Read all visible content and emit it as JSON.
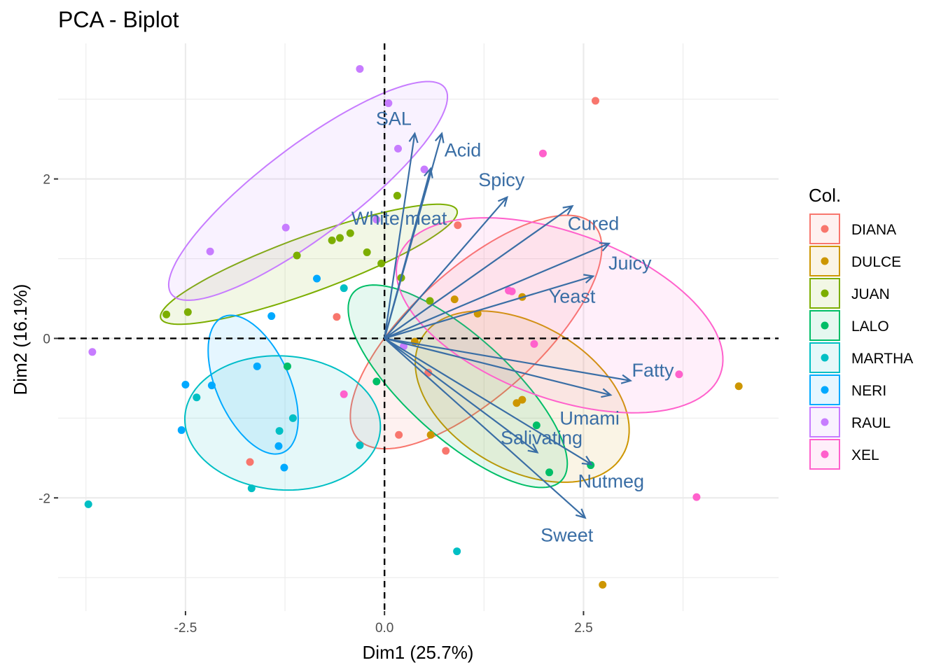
{
  "chart_data": {
    "type": "scatter",
    "title": "PCA - Biplot",
    "xlabel": "Dim1 (25.7%)",
    "ylabel": "Dim2 (16.1%)",
    "xlim": [
      -4.1,
      4.95
    ],
    "ylim": [
      -3.42,
      3.7
    ],
    "x_ticks": [
      -2.5,
      0.0,
      2.5
    ],
    "x_tick_labels": [
      "-2.5",
      "0.0",
      "2.5"
    ],
    "y_ticks": [
      -2,
      0,
      2
    ],
    "y_tick_labels": [
      "-2",
      "0",
      "2"
    ],
    "grid": true,
    "legend": {
      "title": "Col.",
      "position": "right"
    },
    "colors": {
      "DIANA": "#F8766D",
      "DULCE": "#CD9600",
      "JUAN": "#7CAE00",
      "LALO": "#00BE67",
      "MARTHA": "#00BFC4",
      "NERI": "#00A9FF",
      "RAUL": "#C77CFF",
      "XEL": "#FF61CC"
    },
    "arrow_color": "#3a6ea5",
    "series": [
      {
        "name": "DIANA",
        "points": [
          [
            2.65,
            2.98
          ],
          [
            0.92,
            1.42
          ],
          [
            -0.6,
            0.27
          ],
          [
            0.18,
            -1.21
          ],
          [
            0.77,
            -1.41
          ],
          [
            -1.69,
            -1.55
          ],
          [
            0.55,
            -0.43
          ]
        ],
        "ellipse": {
          "cx": 1.15,
          "cy": 0.08,
          "rx": 2.0,
          "ry": 0.8,
          "angle": 42
        }
      },
      {
        "name": "DULCE",
        "points": [
          [
            0.88,
            0.49
          ],
          [
            1.17,
            0.31
          ],
          [
            1.73,
            0.52
          ],
          [
            0.38,
            -0.04
          ],
          [
            1.73,
            -0.77
          ],
          [
            1.66,
            -0.81
          ],
          [
            0.58,
            -1.21
          ],
          [
            4.45,
            -0.6
          ],
          [
            2.74,
            -3.09
          ]
        ],
        "ellipse": {
          "cx": 1.73,
          "cy": -0.73,
          "rx": 1.46,
          "ry": 0.91,
          "angle": -30
        }
      },
      {
        "name": "JUAN",
        "points": [
          [
            -2.74,
            0.3
          ],
          [
            -2.47,
            0.33
          ],
          [
            -1.1,
            1.04
          ],
          [
            -0.66,
            1.23
          ],
          [
            -0.56,
            1.26
          ],
          [
            -0.43,
            1.32
          ],
          [
            -0.22,
            1.08
          ],
          [
            -0.04,
            0.94
          ],
          [
            0.16,
            1.79
          ],
          [
            0.21,
            0.76
          ],
          [
            0.57,
            0.47
          ]
        ],
        "ellipse": {
          "cx": -0.95,
          "cy": 0.93,
          "rx": 1.98,
          "ry": 0.35,
          "angle": 20
        }
      },
      {
        "name": "LALO",
        "points": [
          [
            -1.22,
            -0.35
          ],
          [
            -0.1,
            -0.54
          ],
          [
            1.91,
            -1.09
          ],
          [
            2.59,
            -1.59
          ],
          [
            2.07,
            -1.68
          ]
        ],
        "ellipse": {
          "cx": 0.92,
          "cy": -0.6,
          "rx": 1.76,
          "ry": 0.64,
          "angle": -42
        }
      },
      {
        "name": "MARTHA",
        "points": [
          [
            -3.72,
            -2.08
          ],
          [
            -2.36,
            -0.74
          ],
          [
            -0.51,
            0.63
          ],
          [
            -1.32,
            -1.16
          ],
          [
            -1.15,
            -1.0
          ],
          [
            -1.67,
            -1.88
          ],
          [
            -0.31,
            -1.34
          ],
          [
            0.91,
            -2.67
          ]
        ],
        "ellipse": {
          "cx": -1.28,
          "cy": -1.06,
          "rx": 1.23,
          "ry": 0.84,
          "angle": -4
        }
      },
      {
        "name": "NERI",
        "points": [
          [
            -0.85,
            0.75
          ],
          [
            -1.42,
            0.28
          ],
          [
            -1.6,
            -0.35
          ],
          [
            -2.5,
            -0.58
          ],
          [
            -2.17,
            -0.59
          ],
          [
            -2.55,
            -1.15
          ],
          [
            -1.33,
            -1.35
          ],
          [
            -1.26,
            -1.62
          ]
        ],
        "ellipse": {
          "cx": -1.65,
          "cy": -0.58,
          "rx": 0.93,
          "ry": 0.46,
          "angle": -66
        }
      },
      {
        "name": "RAUL",
        "points": [
          [
            -0.31,
            3.38
          ],
          [
            0.05,
            2.95
          ],
          [
            0.17,
            2.38
          ],
          [
            0.5,
            2.12
          ],
          [
            -0.1,
            1.49
          ],
          [
            -1.24,
            1.39
          ],
          [
            -2.19,
            1.09
          ],
          [
            -3.67,
            -0.17
          ],
          [
            0.24,
            -0.1
          ]
        ],
        "ellipse": {
          "cx": -0.96,
          "cy": 1.85,
          "rx": 2.15,
          "ry": 0.57,
          "angle": 37
        }
      },
      {
        "name": "XEL",
        "points": [
          [
            1.99,
            2.32
          ],
          [
            1.56,
            0.6
          ],
          [
            1.6,
            0.59
          ],
          [
            1.88,
            -0.07
          ],
          [
            -0.51,
            -0.7
          ],
          [
            3.7,
            -0.45
          ],
          [
            3.92,
            -1.99
          ]
        ],
        "ellipse": {
          "cx": 2.2,
          "cy": 0.29,
          "rx": 2.15,
          "ry": 1.04,
          "angle": -20
        }
      }
    ],
    "arrows": [
      {
        "label": "SAL",
        "x": 0.38,
        "y": 2.57
      },
      {
        "label": "Acid",
        "x": 0.72,
        "y": 2.57
      },
      {
        "label": "White meat",
        "x": 0.58,
        "y": 2.13
      },
      {
        "label": "Spicy",
        "x": 1.54,
        "y": 1.77
      },
      {
        "label": "Cured",
        "x": 2.36,
        "y": 1.66
      },
      {
        "label": "Juicy",
        "x": 2.82,
        "y": 1.19
      },
      {
        "label": "Yeast",
        "x": 2.62,
        "y": 0.78
      },
      {
        "label": "Fatty",
        "x": 3.09,
        "y": -0.53
      },
      {
        "label": "Umami",
        "x": 2.84,
        "y": -0.71
      },
      {
        "label": "Salivating",
        "x": 1.92,
        "y": -1.43
      },
      {
        "label": "Nutmeg",
        "x": 2.6,
        "y": -1.58
      },
      {
        "label": "Sweet",
        "x": 2.52,
        "y": -2.25
      }
    ]
  }
}
